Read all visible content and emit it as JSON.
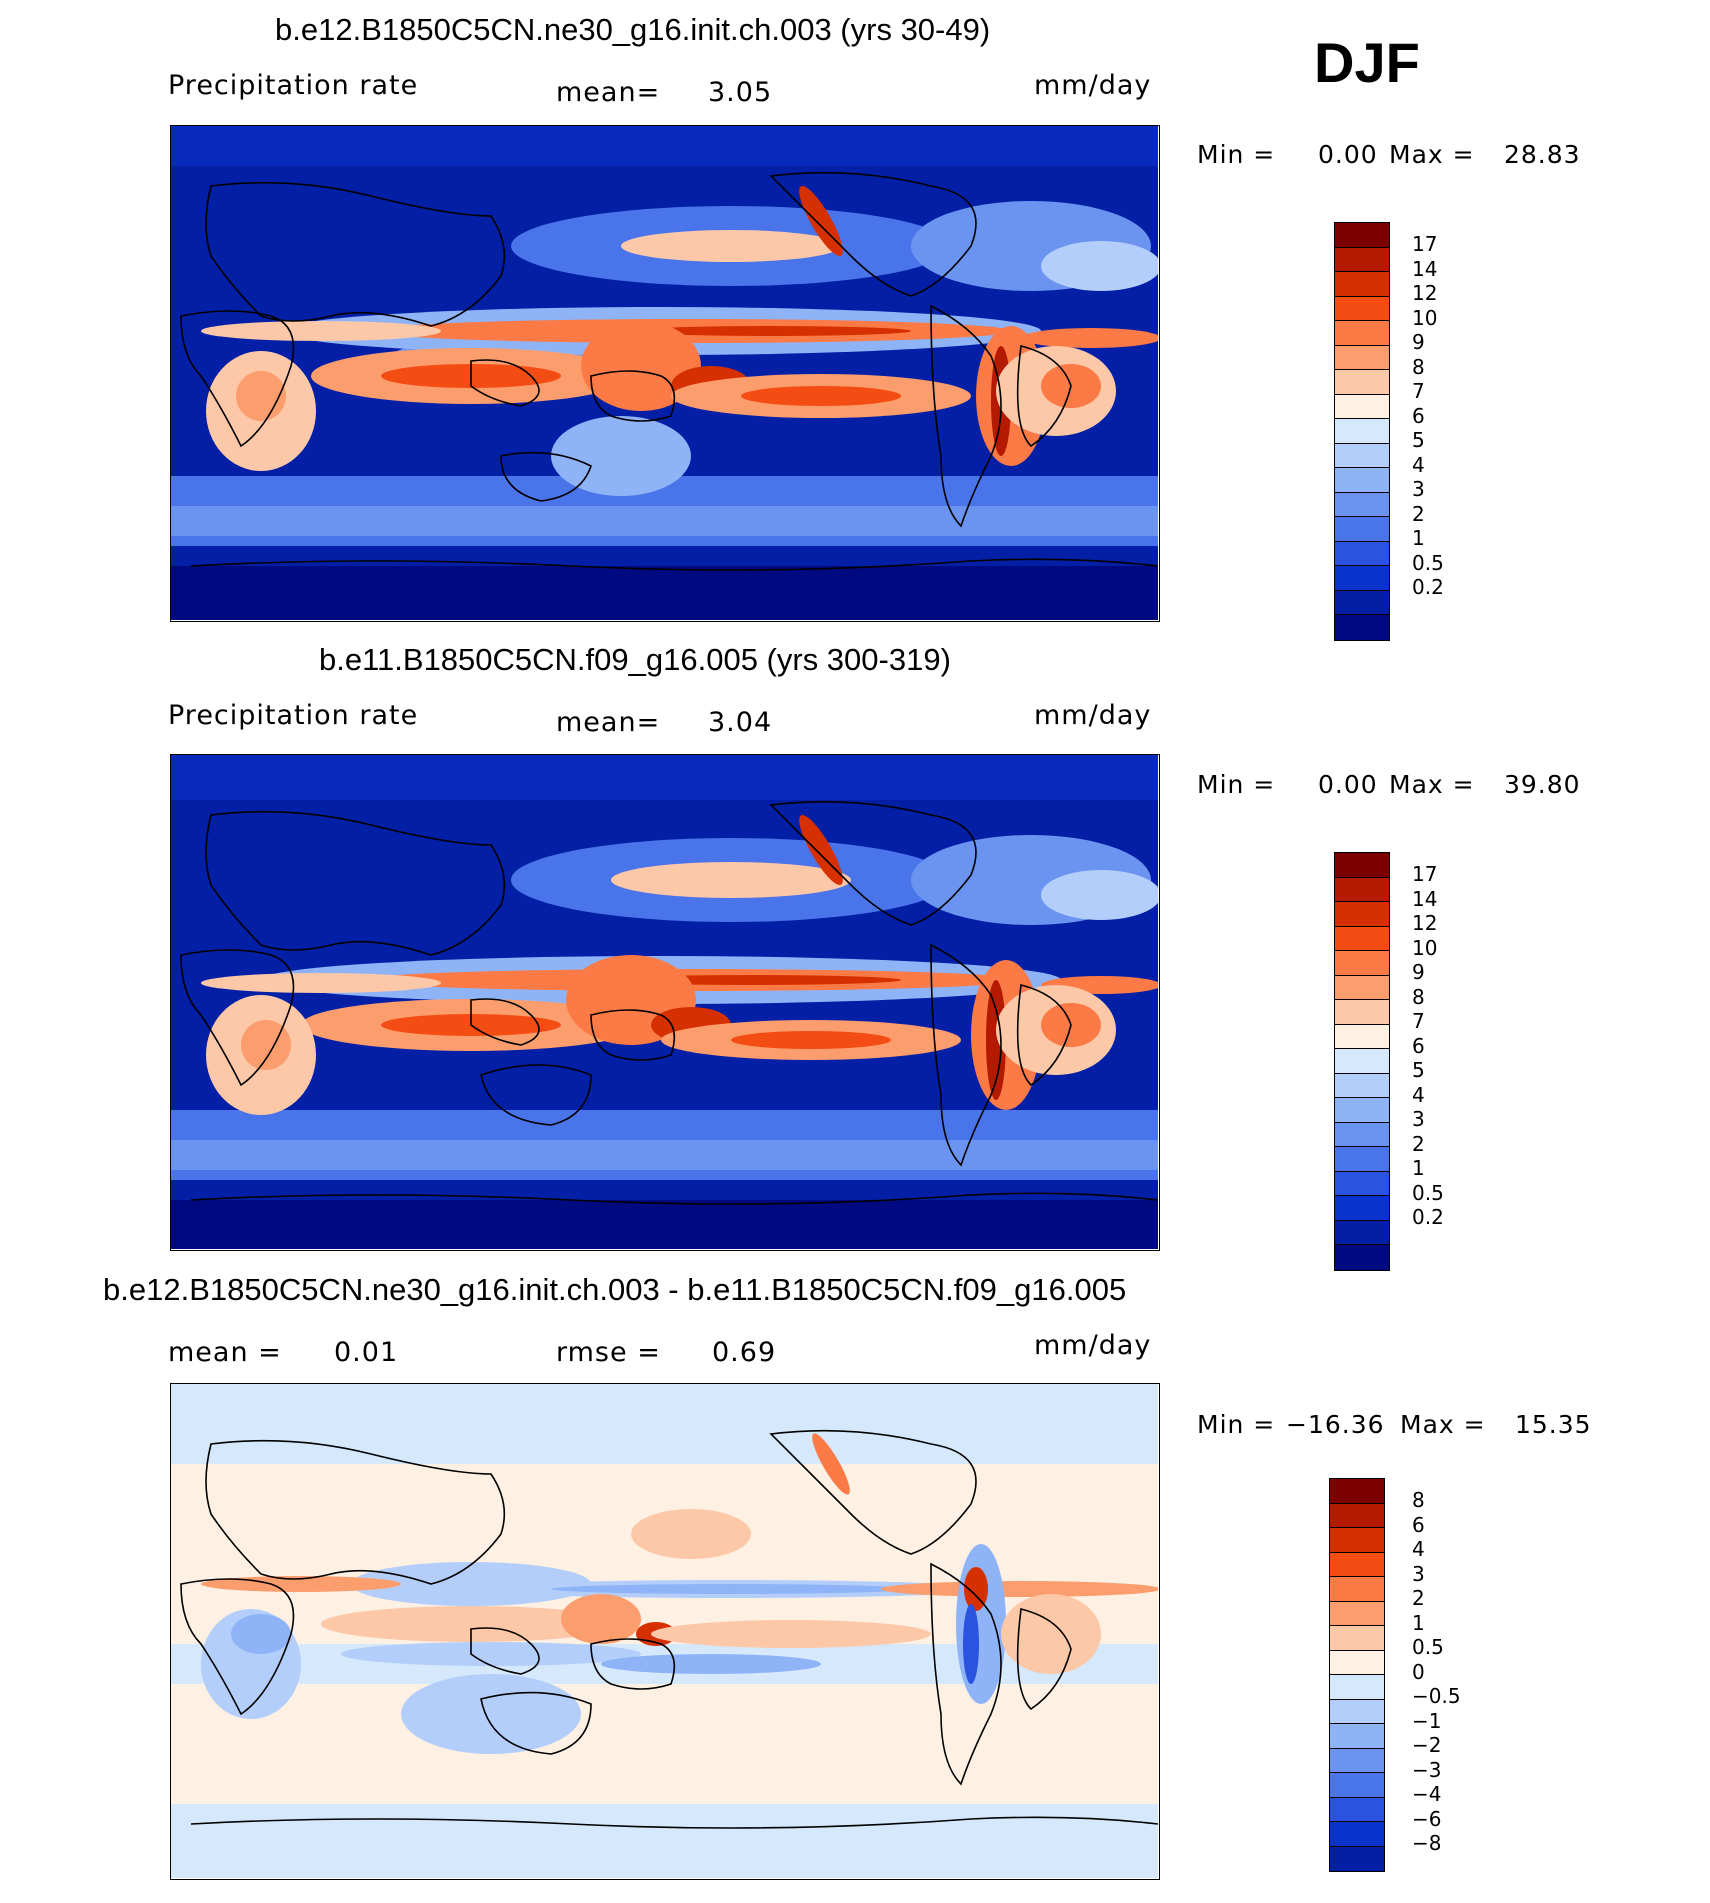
{
  "season": "DJF",
  "panels": [
    {
      "id": "top",
      "title": "b.e12.B1850C5CN.ne30_g16.init.ch.003 (yrs 30-49)",
      "variable": "Precipitation rate",
      "stat_label": "mean=",
      "stat_value": "3.05",
      "units": "mm/day",
      "min_label": "Min  =",
      "min_value": "0.00",
      "max_label": "Max  =",
      "max_value": "28.83",
      "colorbar": {
        "colors": [
          "#7d0000",
          "#b31a00",
          "#d73000",
          "#f44d14",
          "#fb7a45",
          "#fc9d6e",
          "#fdc8a8",
          "#fef0e3",
          "#d6e8fb",
          "#b3cefa",
          "#8fb3f7",
          "#6b94f1",
          "#4a74ea",
          "#2a54e0",
          "#0a32cc",
          "#031fa5",
          "#000a80"
        ],
        "labels": [
          "17",
          "14",
          "12",
          "10",
          "9",
          "8",
          "7",
          "6",
          "5",
          "4",
          "3",
          "2",
          "1",
          "0.5",
          "0.2"
        ]
      }
    },
    {
      "id": "middle",
      "title": "b.e11.B1850C5CN.f09_g16.005 (yrs 300-319)",
      "variable": "Precipitation rate",
      "stat_label": "mean=",
      "stat_value": "3.04",
      "units": "mm/day",
      "min_label": "Min  =",
      "min_value": "0.00",
      "max_label": "Max  =",
      "max_value": "39.80",
      "colorbar": {
        "colors": [
          "#7d0000",
          "#b31a00",
          "#d73000",
          "#f44d14",
          "#fb7a45",
          "#fc9d6e",
          "#fdc8a8",
          "#fef0e3",
          "#d6e8fb",
          "#b3cefa",
          "#8fb3f7",
          "#6b94f1",
          "#4a74ea",
          "#2a54e0",
          "#0a32cc",
          "#031fa5",
          "#000a80"
        ],
        "labels": [
          "17",
          "14",
          "12",
          "10",
          "9",
          "8",
          "7",
          "6",
          "5",
          "4",
          "3",
          "2",
          "1",
          "0.5",
          "0.2"
        ]
      }
    },
    {
      "id": "bottom",
      "title": "b.e12.B1850C5CN.ne30_g16.init.ch.003 - b.e11.B1850C5CN.f09_g16.005",
      "mean_label": "mean  =",
      "mean_value": "0.01",
      "rmse_label": "rmse  =",
      "rmse_value": "0.69",
      "units": "mm/day",
      "min_label": "Min  =",
      "min_value": "−16.36",
      "max_label": "Max  =",
      "max_value": "15.35",
      "colorbar": {
        "colors": [
          "#7d0000",
          "#b31a00",
          "#d73000",
          "#f44d14",
          "#fb7a45",
          "#fc9d6e",
          "#fdc8a8",
          "#fef0e3",
          "#d6e8fb",
          "#b3cefa",
          "#8fb3f7",
          "#6b94f1",
          "#4a74ea",
          "#2a54e0",
          "#0a32cc",
          "#031fa5"
        ],
        "labels": [
          "8",
          "6",
          "4",
          "3",
          "2",
          "1",
          "0.5",
          "0",
          "−0.5",
          "−1",
          "−2",
          "−3",
          "−4",
          "−6",
          "−8"
        ]
      }
    }
  ]
}
